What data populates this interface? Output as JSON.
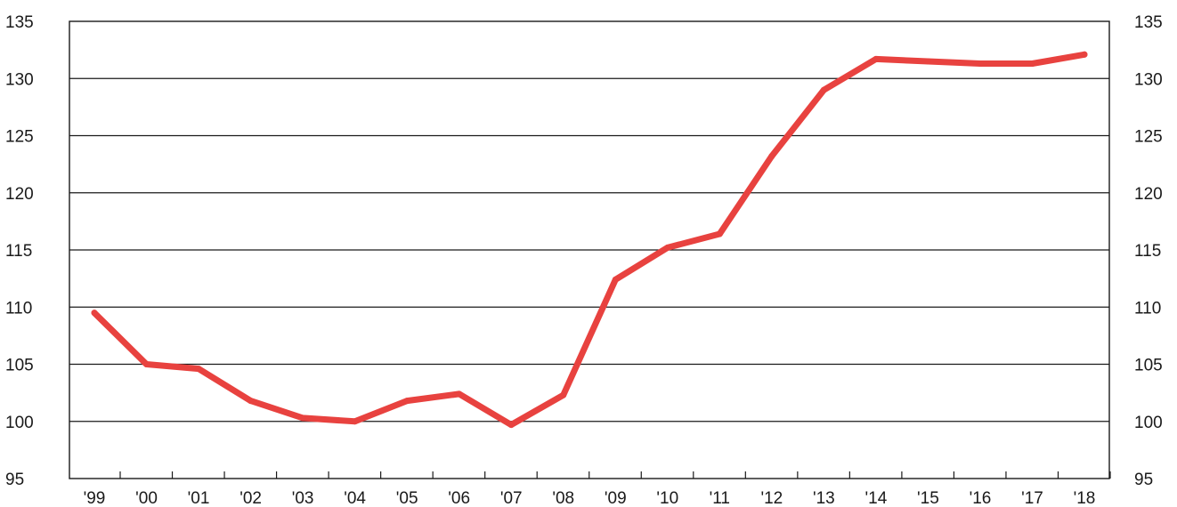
{
  "chart_data": {
    "type": "line",
    "title": "",
    "xlabel": "",
    "ylabel": "",
    "categories": [
      "'99",
      "'00",
      "'01",
      "'02",
      "'03",
      "'04",
      "'05",
      "'06",
      "'07",
      "'08",
      "'09",
      "'10",
      "'11",
      "'12",
      "'13",
      "'14",
      "'15",
      "'16",
      "'17",
      "'18"
    ],
    "series": [
      {
        "values": [
          109.5,
          105.0,
          104.6,
          101.8,
          100.3,
          100.0,
          101.8,
          102.4,
          99.7,
          102.3,
          112.4,
          115.2,
          116.4,
          123.2,
          129.0,
          131.7,
          131.5,
          131.3,
          131.3,
          132.1
        ],
        "color": "#e8423f"
      }
    ],
    "ylim": [
      95,
      135
    ],
    "y_ticks": [
      95,
      100,
      105,
      110,
      115,
      120,
      125,
      130,
      135
    ],
    "y_tick_labels": [
      "95",
      "100",
      "105",
      "110",
      "115",
      "120",
      "125",
      "130",
      "135"
    ],
    "right_axis_tick_labels": [
      "95",
      "100",
      "105",
      "110",
      "115",
      "120",
      "125",
      "130",
      "135"
    ],
    "grid": true,
    "legend": "none",
    "colors": {
      "line": "#e8423f",
      "grid": "#1a1a1a",
      "text": "#1a1a1a"
    }
  }
}
